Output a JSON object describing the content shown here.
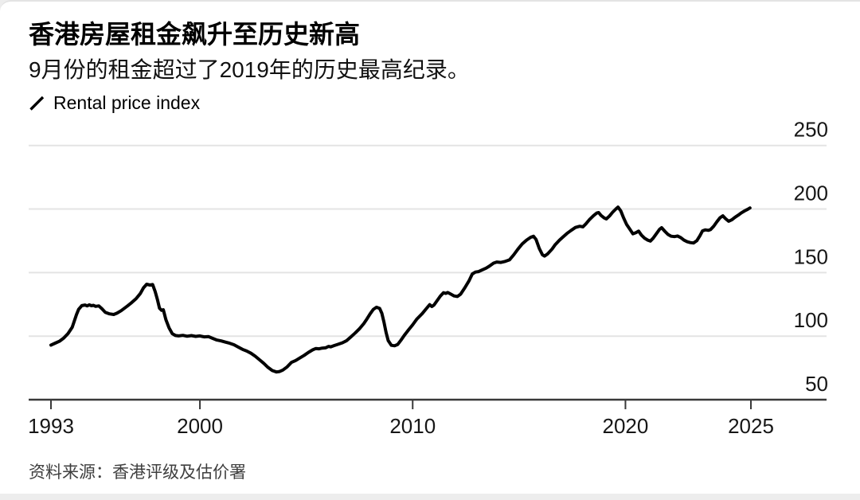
{
  "header": {
    "title": "香港房屋租金飙升至历史新高",
    "subtitle": "9月份的租金超过了2019年的历史最高纪录。"
  },
  "legend": {
    "label": "Rental price index"
  },
  "footer": {
    "source": "资料来源：香港评级及估价署"
  },
  "chart_data": {
    "type": "line",
    "title": "香港房屋租金飙升至历史新高",
    "subtitle": "9月份的租金超过了2019年的历史最高纪录。",
    "xlabel": "",
    "ylabel": "Rental price index",
    "ylim": [
      50,
      250
    ],
    "xlim": [
      1993,
      2025.9
    ],
    "grid": "horizontal",
    "grid_color": "#e4e4e4",
    "axis_color": "#3a3a3a",
    "tick_label_color": "#161616",
    "legend_position": "top-left",
    "y_ticks": [
      250,
      200,
      150,
      100,
      50
    ],
    "x_ticks": [
      {
        "label": "1993",
        "year": 1993
      },
      {
        "label": "2000",
        "year": 2000
      },
      {
        "label": "2010",
        "year": 2010
      },
      {
        "label": "2020",
        "year": 2020
      },
      {
        "label": "2025",
        "year": 2025
      }
    ],
    "series": [
      {
        "name": "Rental price index",
        "color": "#000000",
        "points": [
          [
            1993.0,
            93
          ],
          [
            1993.2,
            94.5
          ],
          [
            1993.4,
            96
          ],
          [
            1993.6,
            98.5
          ],
          [
            1993.8,
            102
          ],
          [
            1994.0,
            107
          ],
          [
            1994.1,
            112
          ],
          [
            1994.2,
            117
          ],
          [
            1994.3,
            121
          ],
          [
            1994.45,
            124
          ],
          [
            1994.6,
            124.5
          ],
          [
            1994.7,
            123.8
          ],
          [
            1994.8,
            124.6
          ],
          [
            1994.9,
            123.9
          ],
          [
            1995.0,
            124.2
          ],
          [
            1995.1,
            123.4
          ],
          [
            1995.25,
            123.8
          ],
          [
            1995.4,
            121.5
          ],
          [
            1995.55,
            118.8
          ],
          [
            1995.75,
            117.5
          ],
          [
            1995.95,
            117
          ],
          [
            1996.1,
            118
          ],
          [
            1996.3,
            120
          ],
          [
            1996.6,
            123.8
          ],
          [
            1996.8,
            126.5
          ],
          [
            1997.0,
            129.5
          ],
          [
            1997.2,
            133.5
          ],
          [
            1997.35,
            138
          ],
          [
            1997.5,
            140.8
          ],
          [
            1997.65,
            140.2
          ],
          [
            1997.78,
            140.6
          ],
          [
            1997.9,
            135
          ],
          [
            1998.0,
            129
          ],
          [
            1998.1,
            122
          ],
          [
            1998.2,
            120.3
          ],
          [
            1998.28,
            120.8
          ],
          [
            1998.4,
            113
          ],
          [
            1998.55,
            106.5
          ],
          [
            1998.7,
            102
          ],
          [
            1998.85,
            100.5
          ],
          [
            1999.0,
            100.2
          ],
          [
            1999.2,
            100.6
          ],
          [
            1999.4,
            99.9
          ],
          [
            1999.6,
            100.4
          ],
          [
            1999.8,
            99.8
          ],
          [
            2000.0,
            100.2
          ],
          [
            2000.2,
            99.4
          ],
          [
            2000.4,
            99.7
          ],
          [
            2000.6,
            98.2
          ],
          [
            2000.8,
            96.9
          ],
          [
            2001.0,
            96.2
          ],
          [
            2001.2,
            95.3
          ],
          [
            2001.4,
            94.4
          ],
          [
            2001.6,
            93.2
          ],
          [
            2001.8,
            91.4
          ],
          [
            2002.0,
            89.6
          ],
          [
            2002.2,
            88.3
          ],
          [
            2002.4,
            86.5
          ],
          [
            2002.6,
            84.2
          ],
          [
            2002.8,
            81.4
          ],
          [
            2003.0,
            78.6
          ],
          [
            2003.2,
            75.4
          ],
          [
            2003.4,
            72.9
          ],
          [
            2003.6,
            71.8
          ],
          [
            2003.75,
            72.2
          ],
          [
            2003.9,
            73.3
          ],
          [
            2004.1,
            75.8
          ],
          [
            2004.3,
            79.3
          ],
          [
            2004.5,
            80.8
          ],
          [
            2004.7,
            82.8
          ],
          [
            2004.9,
            84.9
          ],
          [
            2005.1,
            87.2
          ],
          [
            2005.3,
            89.2
          ],
          [
            2005.45,
            90.3
          ],
          [
            2005.6,
            90
          ],
          [
            2005.75,
            90.6
          ],
          [
            2005.9,
            90.8
          ],
          [
            2006.05,
            91.9
          ],
          [
            2006.15,
            91.6
          ],
          [
            2006.3,
            92.5
          ],
          [
            2006.5,
            93.6
          ],
          [
            2006.7,
            94.8
          ],
          [
            2006.9,
            96.5
          ],
          [
            2007.1,
            99.5
          ],
          [
            2007.3,
            102.5
          ],
          [
            2007.5,
            105.8
          ],
          [
            2007.7,
            109.8
          ],
          [
            2007.85,
            113.5
          ],
          [
            2008.0,
            117.5
          ],
          [
            2008.15,
            121
          ],
          [
            2008.3,
            122.7
          ],
          [
            2008.45,
            121.8
          ],
          [
            2008.55,
            118
          ],
          [
            2008.65,
            111
          ],
          [
            2008.75,
            103
          ],
          [
            2008.85,
            96.5
          ],
          [
            2009.0,
            92.8
          ],
          [
            2009.15,
            92.4
          ],
          [
            2009.3,
            93.5
          ],
          [
            2009.45,
            96.8
          ],
          [
            2009.6,
            100.5
          ],
          [
            2009.8,
            104.8
          ],
          [
            2010.0,
            108.9
          ],
          [
            2010.2,
            113.5
          ],
          [
            2010.45,
            117.8
          ],
          [
            2010.65,
            121.8
          ],
          [
            2010.8,
            124.8
          ],
          [
            2010.9,
            123.3
          ],
          [
            2011.0,
            124.5
          ],
          [
            2011.15,
            128
          ],
          [
            2011.3,
            131.5
          ],
          [
            2011.45,
            134.2
          ],
          [
            2011.55,
            133.6
          ],
          [
            2011.65,
            134.3
          ],
          [
            2011.8,
            133
          ],
          [
            2011.95,
            131.6
          ],
          [
            2012.1,
            131.2
          ],
          [
            2012.25,
            133
          ],
          [
            2012.45,
            138
          ],
          [
            2012.65,
            143.5
          ],
          [
            2012.8,
            148.9
          ],
          [
            2012.95,
            150.4
          ],
          [
            2013.1,
            150.8
          ],
          [
            2013.25,
            152
          ],
          [
            2013.45,
            153.5
          ],
          [
            2013.6,
            155
          ],
          [
            2013.8,
            157.4
          ],
          [
            2013.95,
            158.3
          ],
          [
            2014.15,
            158
          ],
          [
            2014.35,
            158.8
          ],
          [
            2014.55,
            160
          ],
          [
            2014.75,
            164
          ],
          [
            2014.95,
            168.5
          ],
          [
            2015.15,
            172.5
          ],
          [
            2015.35,
            175.5
          ],
          [
            2015.55,
            177.8
          ],
          [
            2015.68,
            178.6
          ],
          [
            2015.8,
            176
          ],
          [
            2015.95,
            169
          ],
          [
            2016.1,
            164
          ],
          [
            2016.2,
            163
          ],
          [
            2016.35,
            164.8
          ],
          [
            2016.55,
            168.5
          ],
          [
            2016.7,
            172
          ],
          [
            2016.9,
            175.5
          ],
          [
            2017.05,
            177.8
          ],
          [
            2017.25,
            180.8
          ],
          [
            2017.45,
            183.2
          ],
          [
            2017.65,
            185.5
          ],
          [
            2017.85,
            186.4
          ],
          [
            2018.0,
            186
          ],
          [
            2018.15,
            188.5
          ],
          [
            2018.3,
            191.5
          ],
          [
            2018.5,
            194.8
          ],
          [
            2018.65,
            196.8
          ],
          [
            2018.74,
            197.2
          ],
          [
            2018.85,
            195
          ],
          [
            2019.0,
            193
          ],
          [
            2019.1,
            192.2
          ],
          [
            2019.25,
            194.5
          ],
          [
            2019.4,
            197.5
          ],
          [
            2019.55,
            200
          ],
          [
            2019.65,
            201.5
          ],
          [
            2019.78,
            198.5
          ],
          [
            2019.9,
            193.5
          ],
          [
            2020.05,
            188
          ],
          [
            2020.2,
            184.3
          ],
          [
            2020.35,
            180.5
          ],
          [
            2020.5,
            181.5
          ],
          [
            2020.62,
            182.6
          ],
          [
            2020.75,
            179.5
          ],
          [
            2020.9,
            177
          ],
          [
            2021.05,
            175.5
          ],
          [
            2021.17,
            174.8
          ],
          [
            2021.3,
            177
          ],
          [
            2021.45,
            180.5
          ],
          [
            2021.6,
            184
          ],
          [
            2021.7,
            185.3
          ],
          [
            2021.85,
            182.5
          ],
          [
            2022.0,
            180
          ],
          [
            2022.15,
            178.6
          ],
          [
            2022.3,
            178.3
          ],
          [
            2022.45,
            178.8
          ],
          [
            2022.6,
            177.5
          ],
          [
            2022.75,
            175.5
          ],
          [
            2022.9,
            174.3
          ],
          [
            2023.05,
            173.6
          ],
          [
            2023.2,
            173.3
          ],
          [
            2023.35,
            175
          ],
          [
            2023.5,
            179
          ],
          [
            2023.62,
            182.8
          ],
          [
            2023.75,
            183.6
          ],
          [
            2023.9,
            183.2
          ],
          [
            2024.0,
            183.8
          ],
          [
            2024.15,
            186.5
          ],
          [
            2024.3,
            190
          ],
          [
            2024.45,
            193.2
          ],
          [
            2024.58,
            194.6
          ],
          [
            2024.7,
            192.5
          ],
          [
            2024.85,
            190.4
          ],
          [
            2025.0,
            191.5
          ],
          [
            2025.15,
            193.5
          ],
          [
            2025.3,
            195.2
          ],
          [
            2025.45,
            197
          ],
          [
            2025.6,
            198.5
          ],
          [
            2025.75,
            199.8
          ],
          [
            2025.85,
            200.8
          ]
        ]
      }
    ]
  }
}
